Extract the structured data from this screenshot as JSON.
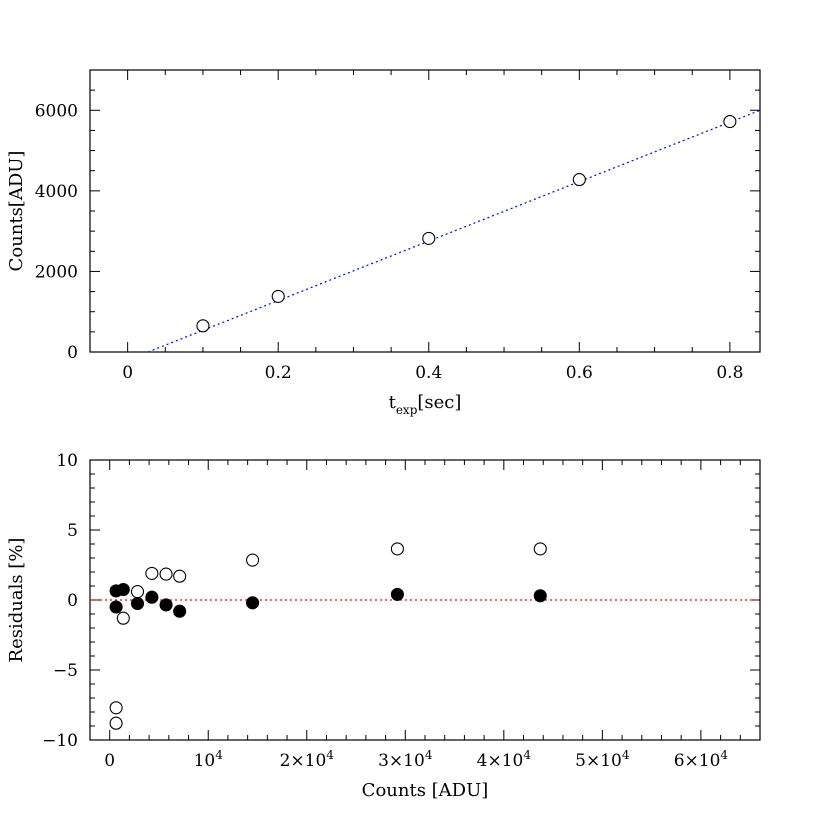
{
  "chart_data": [
    {
      "type": "scatter",
      "title": "",
      "xlabel": {
        "main": "t",
        "sub": "exp",
        "suffix": "[sec]"
      },
      "ylabel": "Counts[ADU]",
      "xlim": [
        -0.05,
        0.84
      ],
      "ylim": [
        0,
        7000
      ],
      "xticks": [
        0,
        0.2,
        0.4,
        0.6,
        0.8
      ],
      "xtick_labels": [
        "0",
        "0.2",
        "0.4",
        "0.6",
        "0.8"
      ],
      "yticks": [
        0,
        2000,
        4000,
        6000
      ],
      "ytick_labels": [
        "0",
        "2000",
        "4000",
        "6000"
      ],
      "x_minor_step": 0.05,
      "y_minor_step": 500,
      "points": [
        {
          "x": 0.1,
          "y": 650
        },
        {
          "x": 0.2,
          "y": 1380
        },
        {
          "x": 0.4,
          "y": 2820
        },
        {
          "x": 0.6,
          "y": 4280
        },
        {
          "x": 0.8,
          "y": 5720
        }
      ],
      "fit_line": {
        "x": [
          0.027,
          0.84
        ],
        "y": [
          0,
          6000
        ],
        "style": "dotted",
        "color": "#0000ff"
      },
      "grid": false
    },
    {
      "type": "scatter",
      "title": "",
      "xlabel": "Counts [ADU]",
      "ylabel": "Residuals [%]",
      "xlim": [
        -2000,
        66000
      ],
      "ylim": [
        -10,
        10
      ],
      "xticks": [
        0,
        10000,
        20000,
        30000,
        40000,
        50000,
        60000
      ],
      "xtick_labels": [
        {
          "mant": "0",
          "exp": ""
        },
        {
          "mant": "10",
          "exp": "4"
        },
        {
          "mant": "2×10",
          "exp": "4"
        },
        {
          "mant": "3×10",
          "exp": "4"
        },
        {
          "mant": "4×10",
          "exp": "4"
        },
        {
          "mant": "5×10",
          "exp": "4"
        },
        {
          "mant": "6×10",
          "exp": "4"
        }
      ],
      "yticks": [
        -10,
        -5,
        0,
        5,
        10
      ],
      "ytick_labels": [
        "−10",
        "−5",
        "0",
        "5",
        "10"
      ],
      "x_minor_step": 2000,
      "y_minor_step": 1,
      "series": [
        {
          "marker": "open-circle",
          "points": [
            {
              "x": 650,
              "y": -7.7
            },
            {
              "x": 650,
              "y": -8.8
            },
            {
              "x": 1380,
              "y": -1.3
            },
            {
              "x": 2820,
              "y": 0.6
            },
            {
              "x": 4280,
              "y": 1.9
            },
            {
              "x": 5720,
              "y": 1.85
            },
            {
              "x": 7100,
              "y": 1.7
            },
            {
              "x": 14500,
              "y": 2.85
            },
            {
              "x": 29200,
              "y": 3.65
            },
            {
              "x": 43700,
              "y": 3.65
            }
          ]
        },
        {
          "marker": "filled-circle",
          "points": [
            {
              "x": 650,
              "y": 0.65
            },
            {
              "x": 650,
              "y": -0.5
            },
            {
              "x": 1380,
              "y": 0.75
            },
            {
              "x": 2820,
              "y": -0.25
            },
            {
              "x": 4280,
              "y": 0.2
            },
            {
              "x": 5720,
              "y": -0.35
            },
            {
              "x": 7100,
              "y": -0.8
            },
            {
              "x": 14500,
              "y": -0.2
            },
            {
              "x": 29200,
              "y": 0.4
            },
            {
              "x": 43700,
              "y": 0.3
            }
          ]
        }
      ],
      "reference_line": {
        "y": 0,
        "style": "dotted",
        "color": "#ff0000"
      },
      "grid": false
    }
  ]
}
